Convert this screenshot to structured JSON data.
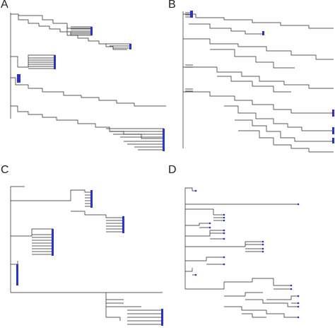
{
  "figure": {
    "panels": [
      {
        "id": "a",
        "label": "A"
      },
      {
        "id": "b",
        "label": "B"
      },
      {
        "id": "c",
        "label": "C"
      },
      {
        "id": "d",
        "label": "D"
      }
    ],
    "colors": {
      "branch": "#222222",
      "tip_marker": "#2b33c9"
    }
  }
}
